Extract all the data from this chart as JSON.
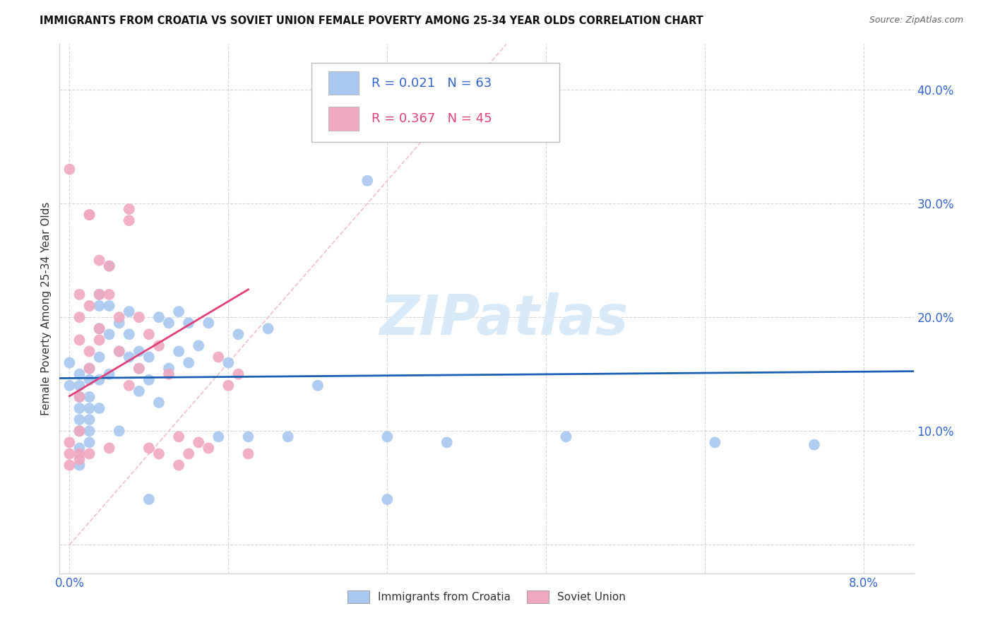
{
  "title": "IMMIGRANTS FROM CROATIA VS SOVIET UNION FEMALE POVERTY AMONG 25-34 YEAR OLDS CORRELATION CHART",
  "source": "Source: ZipAtlas.com",
  "ylabel": "Female Poverty Among 25-34 Year Olds",
  "croatia_R": 0.021,
  "croatia_N": 63,
  "soviet_R": 0.367,
  "soviet_N": 45,
  "croatia_color": "#a8c8f0",
  "soviet_color": "#f0a8c0",
  "croatia_line_color": "#1a5fb4",
  "soviet_line_color": "#e0407a",
  "diagonal_color": "#f0c0c8",
  "watermark_color": "#d8eaf8",
  "xlim": [
    -0.001,
    0.085
  ],
  "ylim": [
    -0.025,
    0.44
  ],
  "croatia_x": [
    0.0,
    0.0,
    0.001,
    0.001,
    0.001,
    0.001,
    0.001,
    0.001,
    0.001,
    0.001,
    0.002,
    0.002,
    0.002,
    0.002,
    0.002,
    0.002,
    0.002,
    0.003,
    0.003,
    0.003,
    0.003,
    0.003,
    0.003,
    0.004,
    0.004,
    0.004,
    0.004,
    0.005,
    0.005,
    0.005,
    0.006,
    0.006,
    0.006,
    0.007,
    0.007,
    0.007,
    0.008,
    0.008,
    0.009,
    0.009,
    0.01,
    0.01,
    0.011,
    0.011,
    0.012,
    0.012,
    0.013,
    0.014,
    0.015,
    0.016,
    0.017,
    0.018,
    0.02,
    0.022,
    0.025,
    0.03,
    0.032,
    0.038,
    0.05,
    0.065,
    0.075,
    0.032,
    0.008
  ],
  "croatia_y": [
    0.14,
    0.16,
    0.14,
    0.15,
    0.13,
    0.12,
    0.11,
    0.1,
    0.085,
    0.07,
    0.155,
    0.145,
    0.13,
    0.12,
    0.11,
    0.1,
    0.09,
    0.22,
    0.21,
    0.19,
    0.165,
    0.145,
    0.12,
    0.245,
    0.21,
    0.185,
    0.15,
    0.195,
    0.17,
    0.1,
    0.205,
    0.185,
    0.165,
    0.17,
    0.155,
    0.135,
    0.165,
    0.145,
    0.2,
    0.125,
    0.195,
    0.155,
    0.205,
    0.17,
    0.195,
    0.16,
    0.175,
    0.195,
    0.095,
    0.16,
    0.185,
    0.095,
    0.19,
    0.095,
    0.14,
    0.32,
    0.095,
    0.09,
    0.095,
    0.09,
    0.088,
    0.04,
    0.04
  ],
  "soviet_x": [
    0.0,
    0.0,
    0.001,
    0.001,
    0.001,
    0.001,
    0.001,
    0.001,
    0.002,
    0.002,
    0.002,
    0.002,
    0.002,
    0.003,
    0.003,
    0.003,
    0.004,
    0.004,
    0.004,
    0.005,
    0.005,
    0.006,
    0.006,
    0.006,
    0.007,
    0.007,
    0.008,
    0.008,
    0.009,
    0.009,
    0.01,
    0.011,
    0.011,
    0.012,
    0.013,
    0.014,
    0.015,
    0.016,
    0.017,
    0.018,
    0.002,
    0.003,
    0.0,
    0.0,
    0.001
  ],
  "soviet_y": [
    0.33,
    0.09,
    0.22,
    0.2,
    0.18,
    0.13,
    0.1,
    0.08,
    0.29,
    0.21,
    0.17,
    0.155,
    0.08,
    0.25,
    0.22,
    0.19,
    0.245,
    0.22,
    0.085,
    0.2,
    0.17,
    0.295,
    0.285,
    0.14,
    0.2,
    0.155,
    0.185,
    0.085,
    0.175,
    0.08,
    0.15,
    0.095,
    0.07,
    0.08,
    0.09,
    0.085,
    0.165,
    0.14,
    0.15,
    0.08,
    0.29,
    0.18,
    0.07,
    0.08,
    0.075
  ]
}
